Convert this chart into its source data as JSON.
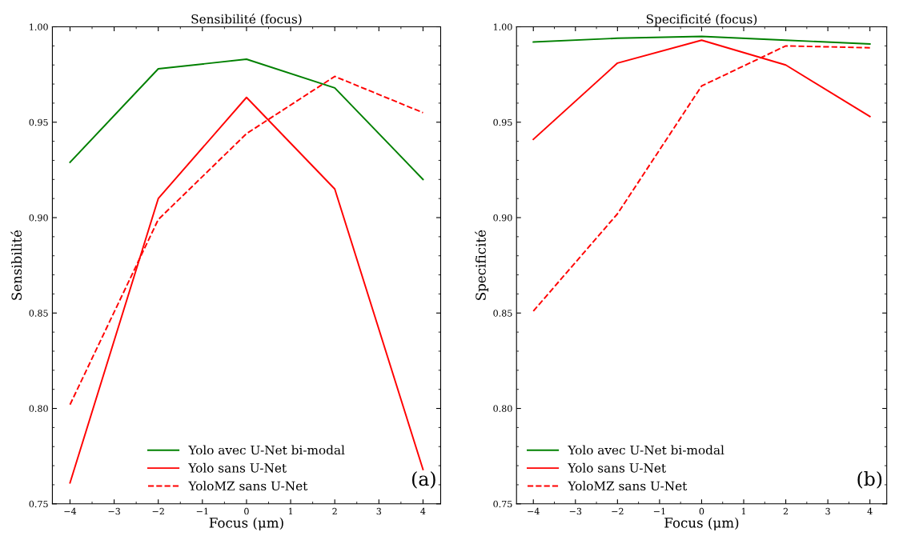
{
  "chart_data": [
    {
      "type": "line",
      "title": "Sensibilité (focus)",
      "xlabel": "Focus (μm)",
      "ylabel": "Sensibilité",
      "x": [
        -4,
        -2,
        0,
        2,
        4
      ],
      "series": [
        {
          "name": "Yolo avec U-Net bi-modal",
          "color": "#008000",
          "values": [
            0.929,
            0.978,
            0.983,
            0.968,
            0.92
          ],
          "line_style": "solid"
        },
        {
          "name": "Yolo sans U-Net",
          "color": "#ff0000",
          "values": [
            0.761,
            0.91,
            0.963,
            0.915,
            0.768
          ],
          "line_style": "solid"
        },
        {
          "name": "YoloMZ sans U-Net",
          "color": "#ff0000",
          "values": [
            0.802,
            0.899,
            0.944,
            0.974,
            0.955
          ],
          "line_style": "dashed"
        }
      ],
      "xlim": [
        -4.4,
        4.4
      ],
      "xticks": [
        {
          "value": -4,
          "label": "−4"
        },
        {
          "value": -3,
          "label": "−3"
        },
        {
          "value": -2,
          "label": "−2"
        },
        {
          "value": -1,
          "label": "−1"
        },
        0,
        1,
        2,
        3,
        4
      ],
      "ylim": [
        0.75,
        1.0
      ],
      "yticks": [
        {
          "value": 0.75,
          "label": "0.75"
        },
        {
          "value": 0.8,
          "label": "0.80"
        },
        {
          "value": 0.85,
          "label": "0.85"
        },
        {
          "value": 0.9,
          "label": "0.90"
        },
        {
          "value": 0.95,
          "label": "0.95"
        },
        {
          "value": 1.0,
          "label": "1.00"
        }
      ],
      "annotations": [
        "(a)"
      ],
      "legend": "bottom",
      "grid": false,
      "marker": "none"
    },
    {
      "type": "line",
      "title": "Specificité (focus)",
      "xlabel": "Focus (μm)",
      "ylabel": "Specificité",
      "x": [
        -4,
        -2,
        0,
        2,
        4
      ],
      "series": [
        {
          "name": "Yolo avec U-Net bi-modal",
          "color": "#008000",
          "values": [
            0.992,
            0.994,
            0.995,
            0.993,
            0.991
          ],
          "line_style": "solid"
        },
        {
          "name": "Yolo sans U-Net",
          "color": "#ff0000",
          "values": [
            0.941,
            0.981,
            0.993,
            0.98,
            0.953
          ],
          "line_style": "solid"
        },
        {
          "name": "YoloMZ sans U-Net",
          "color": "#ff0000",
          "values": [
            0.851,
            0.902,
            0.969,
            0.99,
            0.989
          ],
          "line_style": "dashed"
        }
      ],
      "xlim": [
        -4.4,
        4.4
      ],
      "xticks": [
        {
          "value": -4,
          "label": "−4"
        },
        {
          "value": -3,
          "label": "−3"
        },
        {
          "value": -2,
          "label": "−2"
        },
        {
          "value": -1,
          "label": "−1"
        },
        0,
        1,
        2,
        3,
        4
      ],
      "ylim": [
        0.75,
        1.0
      ],
      "yticks": [
        {
          "value": 0.75,
          "label": "0.75"
        },
        {
          "value": 0.8,
          "label": "0.80"
        },
        {
          "value": 0.85,
          "label": "0.85"
        },
        {
          "value": 0.9,
          "label": "0.90"
        },
        {
          "value": 0.95,
          "label": "0.95"
        },
        {
          "value": 1.0,
          "label": "1.00"
        }
      ],
      "annotations": [
        "(b)"
      ],
      "legend": "bottom left",
      "grid": false,
      "marker": "none"
    }
  ]
}
